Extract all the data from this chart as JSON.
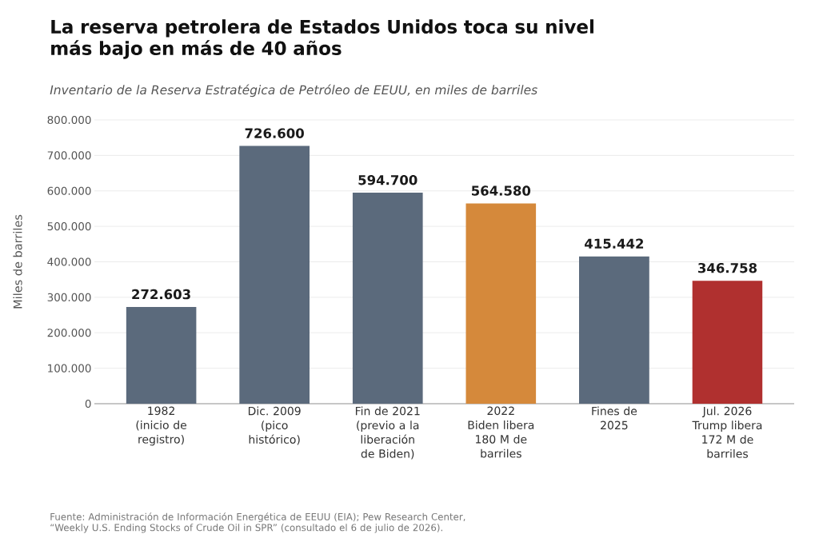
{
  "chart_data": {
    "type": "bar",
    "title": "La reserva petrolera de Estados Unidos toca su nivel\nmás bajo en más de 40 años",
    "subtitle": "Inventario de la Reserva Estratégica de Petróleo de EEUU, en miles de barriles",
    "ylabel": "Miles de barriles",
    "categories": [
      "1982\n(inicio de\nregistro)",
      "Dic. 2009\n(pico\nhistórico)",
      "Fin de 2021\n(previo a la\nliberación\nde Biden)",
      "2022\nBiden libera\n180 M de\nbarriles",
      "Fines de\n2025",
      "Jul. 2026\nTrump libera\n172 M de\nbarriles"
    ],
    "values": [
      272603,
      726600,
      594700,
      564580,
      415442,
      346758
    ],
    "colors": [
      "#5b6a7c",
      "#5b6a7c",
      "#5b6a7c",
      "#d5893b",
      "#5b6a7c",
      "#b0302f"
    ],
    "value_labels": [
      "272.603",
      "726.600",
      "594.700",
      "564.580",
      "415.442",
      "346.758"
    ],
    "ylim": [
      0,
      800000
    ],
    "yticks": [
      0,
      {
        "value": 100000,
        "label": "100.000"
      },
      {
        "value": 200000,
        "label": "200.000"
      },
      {
        "value": 300000,
        "label": "300.000"
      },
      {
        "value": 400000,
        "label": "400.000"
      },
      {
        "value": 500000,
        "label": "500.000"
      },
      {
        "value": 600000,
        "label": "600.000"
      },
      {
        "value": 700000,
        "label": "700.000"
      },
      {
        "value": 800000,
        "label": "800.000"
      }
    ],
    "grid": "y",
    "annotations": [
      "Fuente: Administración de Información Energética de EEUU (EIA); Pew Research Center,\n“Weekly U.S. Ending Stocks of Crude Oil in SPR” (consultado el 6 de julio de 2026)."
    ]
  }
}
